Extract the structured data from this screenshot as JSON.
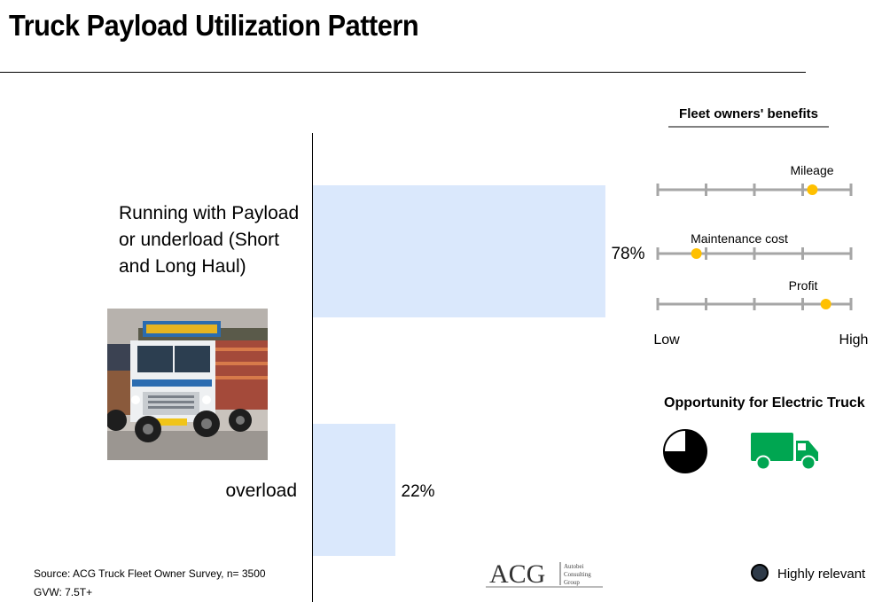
{
  "title": "Truck Payload Utilization Pattern",
  "chart_data": {
    "type": "bar",
    "orientation": "horizontal",
    "categories": [
      "Running with Payload or underload (Short and Long Haul)",
      "overload"
    ],
    "category_lines": [
      [
        "Running with Payload",
        "or underload (Short",
        "and Long Haul)"
      ],
      [
        "overload"
      ]
    ],
    "values": [
      78,
      22
    ],
    "value_labels": [
      "78%",
      "22%"
    ],
    "unit": "%",
    "xlim": [
      0,
      100
    ],
    "bar_color": "#dae8fc",
    "grid": false
  },
  "benefits": {
    "title": "Fleet owners' benefits",
    "scale_low": "Low",
    "scale_high": "High",
    "scale_steps": 5,
    "items": [
      {
        "label": "Mileage",
        "level": 0.8
      },
      {
        "label": "Maintenance cost",
        "level": 0.2
      },
      {
        "label": "Profit",
        "level": 0.87
      }
    ],
    "track_color": "#a6a6a6",
    "marker_color": "#ffc000"
  },
  "opportunity": {
    "title": "Opportunity for Electric Truck",
    "harvey_ball_fill": 0.75,
    "truck_color": "#00a651"
  },
  "source": {
    "line1": "Source: ACG Truck Fleet Owner Survey, n= 3500",
    "line2": "GVW: 7.5T+"
  },
  "logo": {
    "mark": "ACG",
    "line1": "Autobei",
    "line2": "Consulting",
    "line3": "Group"
  },
  "legend": {
    "label": "Highly relevant"
  }
}
